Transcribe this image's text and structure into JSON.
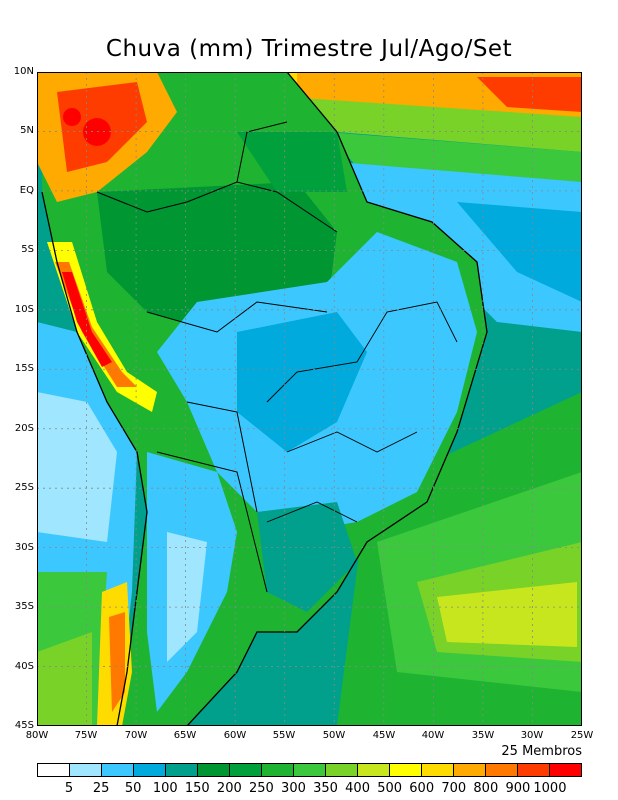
{
  "title": "Chuva (mm) Trimestre Jul/Ago/Set",
  "members_label": "25 Membros",
  "lat_labels": [
    "10N",
    "5N",
    "EQ",
    "5S",
    "10S",
    "15S",
    "20S",
    "25S",
    "30S",
    "35S",
    "40S",
    "45S"
  ],
  "lon_labels": [
    "80W",
    "75W",
    "70W",
    "65W",
    "60W",
    "55W",
    "50W",
    "45W",
    "40W",
    "35W",
    "30W",
    "25W"
  ],
  "legend": {
    "ticks": [
      "5",
      "25",
      "50",
      "100",
      "150",
      "200",
      "250",
      "300",
      "350",
      "400",
      "500",
      "600",
      "700",
      "800",
      "900",
      "1000"
    ],
    "colors": [
      "#ffffff",
      "#a0e6ff",
      "#3cc8ff",
      "#00aadd",
      "#00a08c",
      "#009632",
      "#00a03c",
      "#1eb432",
      "#3cc83c",
      "#78d228",
      "#c8e61e",
      "#ffff00",
      "#ffdc00",
      "#ffaa00",
      "#ff7800",
      "#ff3c00",
      "#ff0000"
    ]
  },
  "map": {
    "domain": "rainfall forecast map",
    "lat_range": [
      -45,
      10
    ],
    "lon_range": [
      -80,
      -25
    ],
    "colors": {
      "ocean_north": "#00a08c",
      "ocean_south": "#3cc83c",
      "brazil_interior": "#3cc8ff",
      "amazon": "#1eb432",
      "andes_high": "#ff0000",
      "atlantic_dry": "#c8e61e",
      "pacific_dry": "#a0e6ff",
      "boundary": "#000000"
    }
  }
}
